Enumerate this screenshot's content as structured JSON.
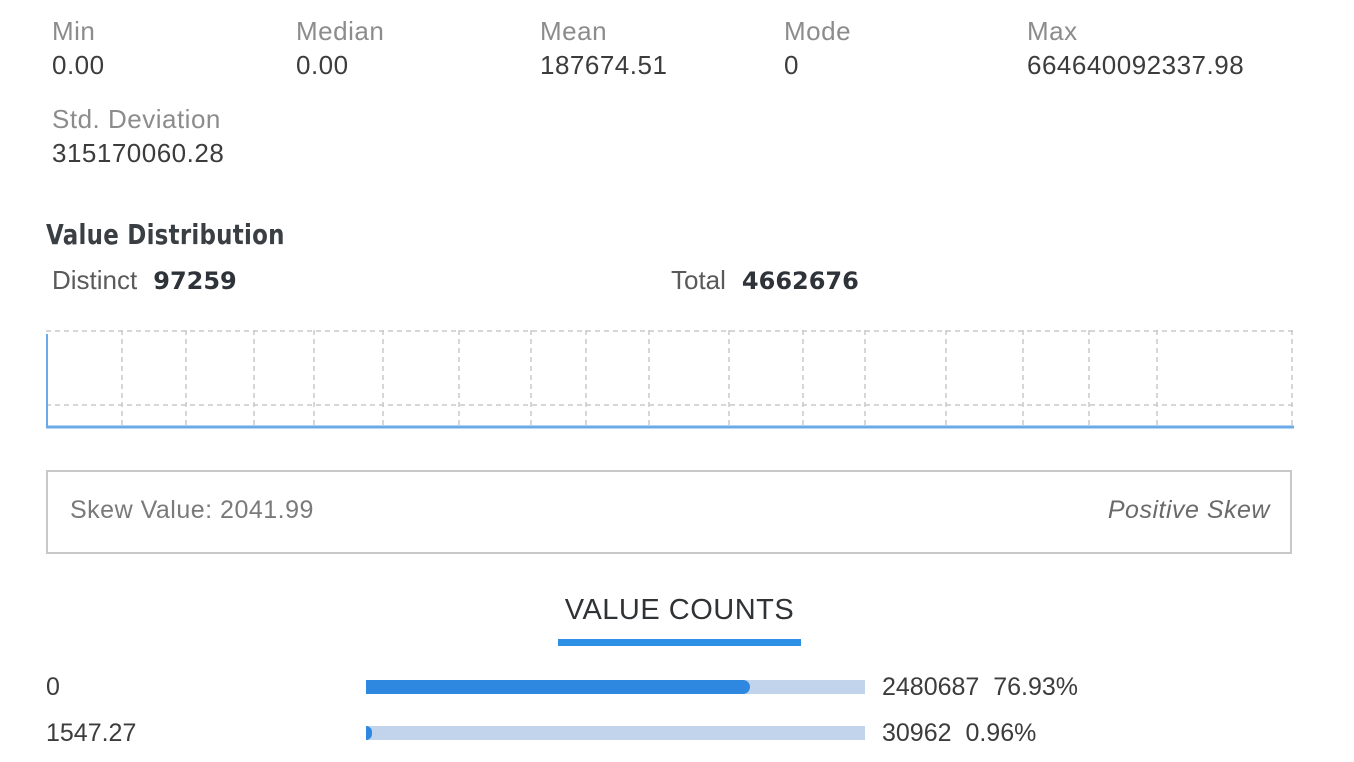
{
  "stats": [
    {
      "label": "Min",
      "value": "0.00"
    },
    {
      "label": "Median",
      "value": "0.00"
    },
    {
      "label": "Mean",
      "value": "187674.51"
    },
    {
      "label": "Mode",
      "value": "0"
    },
    {
      "label": "Max",
      "value": "664640092337.98"
    },
    {
      "label": "Std. Deviation",
      "value": "315170060.28"
    }
  ],
  "distribution": {
    "title": "Value Distribution",
    "distinct_label": "Distinct",
    "distinct_value": "97259",
    "total_label": "Total",
    "total_value": "4662676"
  },
  "skew": {
    "value_text": "Skew Value: 2041.99",
    "type_text": "Positive Skew"
  },
  "value_counts": {
    "tab_label": "VALUE COUNTS",
    "rows": [
      {
        "value": "0",
        "count": "2480687",
        "percent": "76.93%",
        "fraction": 0.7693
      },
      {
        "value": "1547.27",
        "count": "30962",
        "percent": "0.96%",
        "fraction": 0.0096
      }
    ]
  },
  "colors": {
    "accent": "#2e90e5",
    "bar_fill": "#2e88e0",
    "bar_track": "#c2d3ec",
    "chart_line": "#6aaae8",
    "grid": "#c8c8c8"
  }
}
